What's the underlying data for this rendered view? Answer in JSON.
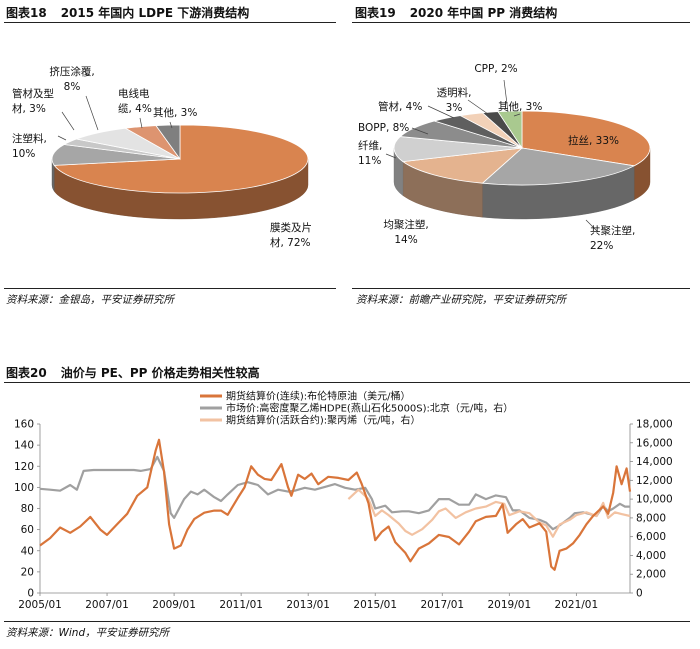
{
  "fig18": {
    "num": "图表18",
    "title": "2015 年国内 LDPE 下游消费结构",
    "source": "资料来源：金银岛，平安证券研究所",
    "chart_data": {
      "type": "pie",
      "title": "2015 年国内 LDPE 下游消费结构",
      "slices": [
        {
          "name": "膜类及片材",
          "value": 72,
          "label1": "膜类及片",
          "label2": "材, 72%",
          "color": "#d9844f"
        },
        {
          "name": "注塑料",
          "value": 10,
          "label1": "注塑料,",
          "label2": "10%",
          "color": "#a6a6a6"
        },
        {
          "name": "管材及型材",
          "value": 3,
          "label1": "管材及型",
          "label2": "材, 3%",
          "color": "#c8c8c8"
        },
        {
          "name": "挤压涂覆",
          "value": 8,
          "label1": "挤压涂覆,",
          "label2": "8%",
          "color": "#e3e3e3"
        },
        {
          "name": "电线电缆",
          "value": 4,
          "label1": "电线电",
          "label2": "缆, 4%",
          "color": "#dd9470"
        },
        {
          "name": "其他",
          "value": 3,
          "label1": "其他, 3%",
          "label2": "",
          "color": "#7f7f7f"
        }
      ]
    }
  },
  "fig19": {
    "num": "图表19",
    "title": "2020 年中国 PP 消费结构",
    "source": "资料来源：前瞻产业研究院，平安证券研究所",
    "chart_data": {
      "type": "pie",
      "title": "2020 年中国 PP 消费结构",
      "slices": [
        {
          "name": "拉丝",
          "value": 33,
          "label1": "拉丝, 33%",
          "label2": "",
          "color": "#d9844f"
        },
        {
          "name": "共聚注塑",
          "value": 22,
          "label1": "共聚注塑,",
          "label2": "22%",
          "color": "#a6a6a6"
        },
        {
          "name": "均聚注塑",
          "value": 14,
          "label1": "均聚注塑,",
          "label2": "14%",
          "color": "#e4b38f"
        },
        {
          "name": "纤维",
          "value": 11,
          "label1": "纤维,",
          "label2": "11%",
          "color": "#d0d0d0"
        },
        {
          "name": "BOPP",
          "value": 8,
          "label1": "BOPP, 8%",
          "label2": "",
          "color": "#8c8c8c"
        },
        {
          "name": "管材",
          "value": 4,
          "label1": "管材, 4%",
          "label2": "",
          "color": "#5f5f5f"
        },
        {
          "name": "透明料",
          "value": 3,
          "label1": "透明料,",
          "label2": "3%",
          "color": "#f2d1b8"
        },
        {
          "name": "CPP",
          "value": 2,
          "label1": "CPP, 2%",
          "label2": "",
          "color": "#4a4a4a"
        },
        {
          "name": "其他",
          "value": 3,
          "label1": "其他, 3%",
          "label2": "",
          "color": "#a9c98f"
        }
      ]
    }
  },
  "fig20": {
    "num": "图表20",
    "title": "油价与 PE、PP 价格走势相关性较高",
    "source": "资料来源：Wind，平安证券研究所",
    "chart_data": {
      "type": "line",
      "title": "油价与 PE、PP 价格走势相关性较高",
      "x_ticks": [
        "2005/01",
        "2007/01",
        "2009/01",
        "2011/01",
        "2013/01",
        "2015/01",
        "2017/01",
        "2019/01",
        "2021/01"
      ],
      "x_range": [
        2005.0,
        2022.6
      ],
      "y_left": {
        "ticks": [
          "0",
          "20",
          "40",
          "60",
          "80",
          "100",
          "120",
          "140",
          "160"
        ],
        "range": [
          0,
          160
        ]
      },
      "y_right": {
        "ticks": [
          "0",
          "2,000",
          "4,000",
          "6,000",
          "8,000",
          "10,000",
          "12,000",
          "14,000",
          "16,000",
          "18,000"
        ],
        "range": [
          0,
          18000
        ]
      },
      "series": [
        {
          "name": "期货结算价(连续):布伦特原油（美元/桶）",
          "axis": "left",
          "color": "#d9753a",
          "points": [
            [
              2005.0,
              45
            ],
            [
              2005.3,
              52
            ],
            [
              2005.6,
              62
            ],
            [
              2005.9,
              57
            ],
            [
              2006.2,
              63
            ],
            [
              2006.5,
              72
            ],
            [
              2006.8,
              60
            ],
            [
              2007.0,
              55
            ],
            [
              2007.3,
              65
            ],
            [
              2007.6,
              75
            ],
            [
              2007.9,
              92
            ],
            [
              2008.2,
              100
            ],
            [
              2008.45,
              135
            ],
            [
              2008.55,
              145
            ],
            [
              2008.7,
              115
            ],
            [
              2008.85,
              65
            ],
            [
              2009.0,
              42
            ],
            [
              2009.2,
              45
            ],
            [
              2009.4,
              60
            ],
            [
              2009.6,
              70
            ],
            [
              2009.9,
              76
            ],
            [
              2010.2,
              78
            ],
            [
              2010.4,
              78
            ],
            [
              2010.6,
              74
            ],
            [
              2010.9,
              90
            ],
            [
              2011.1,
              100
            ],
            [
              2011.3,
              120
            ],
            [
              2011.5,
              112
            ],
            [
              2011.7,
              108
            ],
            [
              2011.9,
              107
            ],
            [
              2012.2,
              122
            ],
            [
              2012.4,
              100
            ],
            [
              2012.5,
              92
            ],
            [
              2012.7,
              112
            ],
            [
              2012.9,
              108
            ],
            [
              2013.1,
              113
            ],
            [
              2013.3,
              103
            ],
            [
              2013.6,
              110
            ],
            [
              2013.9,
              109
            ],
            [
              2014.2,
              107
            ],
            [
              2014.45,
              114
            ],
            [
              2014.6,
              103
            ],
            [
              2014.8,
              85
            ],
            [
              2015.0,
              50
            ],
            [
              2015.2,
              58
            ],
            [
              2015.4,
              63
            ],
            [
              2015.6,
              48
            ],
            [
              2015.9,
              38
            ],
            [
              2016.05,
              30
            ],
            [
              2016.3,
              42
            ],
            [
              2016.6,
              47
            ],
            [
              2016.9,
              55
            ],
            [
              2017.2,
              53
            ],
            [
              2017.5,
              46
            ],
            [
              2017.8,
              58
            ],
            [
              2018.0,
              68
            ],
            [
              2018.3,
              72
            ],
            [
              2018.6,
              73
            ],
            [
              2018.8,
              84
            ],
            [
              2018.95,
              57
            ],
            [
              2019.2,
              65
            ],
            [
              2019.4,
              70
            ],
            [
              2019.6,
              62
            ],
            [
              2019.9,
              66
            ],
            [
              2020.1,
              58
            ],
            [
              2020.25,
              25
            ],
            [
              2020.35,
              22
            ],
            [
              2020.5,
              40
            ],
            [
              2020.7,
              42
            ],
            [
              2020.9,
              47
            ],
            [
              2021.1,
              55
            ],
            [
              2021.3,
              65
            ],
            [
              2021.5,
              73
            ],
            [
              2021.8,
              82
            ],
            [
              2021.95,
              75
            ],
            [
              2022.1,
              95
            ],
            [
              2022.2,
              120
            ],
            [
              2022.35,
              103
            ],
            [
              2022.5,
              118
            ],
            [
              2022.6,
              96
            ]
          ]
        },
        {
          "name": "市场价:高密度聚乙烯HDPE(燕山石化5000S):北京（元/吨，右）",
          "axis": "right",
          "color": "#a0a0a0",
          "points": [
            [
              2005.0,
              11100
            ],
            [
              2005.3,
              11000
            ],
            [
              2005.6,
              10900
            ],
            [
              2005.9,
              11500
            ],
            [
              2006.1,
              11000
            ],
            [
              2006.3,
              13000
            ],
            [
              2006.6,
              13100
            ],
            [
              2006.9,
              13100
            ],
            [
              2007.2,
              13100
            ],
            [
              2007.5,
              13100
            ],
            [
              2007.8,
              13100
            ],
            [
              2008.0,
              13000
            ],
            [
              2008.3,
              13200
            ],
            [
              2008.5,
              14500
            ],
            [
              2008.7,
              13000
            ],
            [
              2008.9,
              8500
            ],
            [
              2009.0,
              8000
            ],
            [
              2009.3,
              10000
            ],
            [
              2009.5,
              10800
            ],
            [
              2009.7,
              10500
            ],
            [
              2009.9,
              11000
            ],
            [
              2010.2,
              10200
            ],
            [
              2010.4,
              9800
            ],
            [
              2010.6,
              10500
            ],
            [
              2010.9,
              11500
            ],
            [
              2011.2,
              11800
            ],
            [
              2011.5,
              11500
            ],
            [
              2011.8,
              10500
            ],
            [
              2012.1,
              11000
            ],
            [
              2012.4,
              10800
            ],
            [
              2012.6,
              10900
            ],
            [
              2012.9,
              11200
            ],
            [
              2013.2,
              11000
            ],
            [
              2013.5,
              11300
            ],
            [
              2013.8,
              11600
            ],
            [
              2014.1,
              11200
            ],
            [
              2014.4,
              11000
            ],
            [
              2014.7,
              11200
            ],
            [
              2014.9,
              10000
            ],
            [
              2015.0,
              9000
            ],
            [
              2015.3,
              9300
            ],
            [
              2015.5,
              8600
            ],
            [
              2015.8,
              8700
            ],
            [
              2016.0,
              8700
            ],
            [
              2016.3,
              8500
            ],
            [
              2016.6,
              8800
            ],
            [
              2016.9,
              10000
            ],
            [
              2017.2,
              10000
            ],
            [
              2017.5,
              9400
            ],
            [
              2017.8,
              9400
            ],
            [
              2018.0,
              10500
            ],
            [
              2018.3,
              10000
            ],
            [
              2018.6,
              10400
            ],
            [
              2018.9,
              10200
            ],
            [
              2019.1,
              8800
            ],
            [
              2019.3,
              8800
            ],
            [
              2019.6,
              8000
            ],
            [
              2019.9,
              7800
            ],
            [
              2020.1,
              7500
            ],
            [
              2020.3,
              6800
            ],
            [
              2020.5,
              7200
            ],
            [
              2020.8,
              8000
            ],
            [
              2020.95,
              8500
            ],
            [
              2021.2,
              8600
            ],
            [
              2021.4,
              8400
            ],
            [
              2021.6,
              8200
            ],
            [
              2021.8,
              9300
            ],
            [
              2021.95,
              8700
            ],
            [
              2022.1,
              9000
            ],
            [
              2022.3,
              9500
            ],
            [
              2022.45,
              9200
            ],
            [
              2022.6,
              9200
            ]
          ]
        },
        {
          "name": "期货结算价(活跃合约):聚丙烯（元/吨，右）",
          "axis": "right",
          "color": "#f2c2a2",
          "points": [
            [
              2014.2,
              10000
            ],
            [
              2014.5,
              11000
            ],
            [
              2014.8,
              10000
            ],
            [
              2015.0,
              8200
            ],
            [
              2015.2,
              8800
            ],
            [
              2015.4,
              8300
            ],
            [
              2015.7,
              7400
            ],
            [
              2015.9,
              6600
            ],
            [
              2016.1,
              6200
            ],
            [
              2016.4,
              6800
            ],
            [
              2016.7,
              7800
            ],
            [
              2016.9,
              8700
            ],
            [
              2017.1,
              9000
            ],
            [
              2017.4,
              8000
            ],
            [
              2017.7,
              8600
            ],
            [
              2018.0,
              9000
            ],
            [
              2018.3,
              9200
            ],
            [
              2018.6,
              9700
            ],
            [
              2018.85,
              9500
            ],
            [
              2019.0,
              8300
            ],
            [
              2019.3,
              8700
            ],
            [
              2019.6,
              8500
            ],
            [
              2019.9,
              7500
            ],
            [
              2020.1,
              7200
            ],
            [
              2020.3,
              6000
            ],
            [
              2020.5,
              7300
            ],
            [
              2020.8,
              7800
            ],
            [
              2021.0,
              8300
            ],
            [
              2021.3,
              8600
            ],
            [
              2021.6,
              8200
            ],
            [
              2021.8,
              9600
            ],
            [
              2021.95,
              8000
            ],
            [
              2022.15,
              8600
            ],
            [
              2022.35,
              8400
            ],
            [
              2022.6,
              8200
            ]
          ]
        }
      ]
    }
  }
}
